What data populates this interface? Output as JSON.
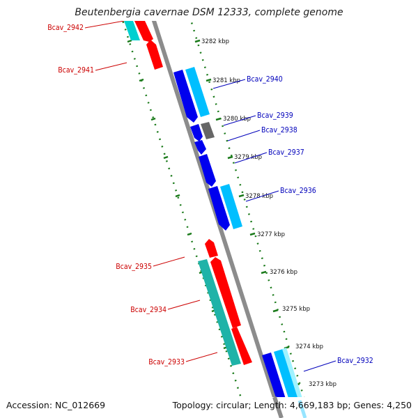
{
  "title": "Beutenbergia cavernae DSM 12333, complete genome",
  "footer": {
    "accession": "Accession: NC_012669",
    "summary": "Topology: circular; Length: 4,669,183 bp; Genes: 4,250"
  },
  "colors": {
    "backbone": "#888888",
    "ring": "#1a7a1a",
    "forward_cds": "#ff0000",
    "forward_rna": "#00bfbf",
    "reverse_cds": "#0000ee",
    "reverse_rna": "#00bfff",
    "other": "#666666",
    "label_forward": "#cc0000",
    "label_reverse": "#0000bb"
  },
  "kbp_labels": [
    "3282 kbp",
    "3281 kbp",
    "3280 kbp",
    "3279 kbp",
    "3278 kbp",
    "3277 kbp",
    "3276 kbp",
    "3275 kbp",
    "3274 kbp",
    "3273 kbp"
  ],
  "gene_labels": {
    "bcav_2942": "Bcav_2942",
    "bcav_2941": "Bcav_2941",
    "bcav_2940": "Bcav_2940",
    "bcav_2939": "Bcav_2939",
    "bcav_2938": "Bcav_2938",
    "bcav_2937": "Bcav_2937",
    "bcav_2936": "Bcav_2936",
    "bcav_2935": "Bcav_2935",
    "bcav_2934": "Bcav_2934",
    "bcav_2933": "Bcav_2933",
    "bcav_2932": "Bcav_2932"
  }
}
